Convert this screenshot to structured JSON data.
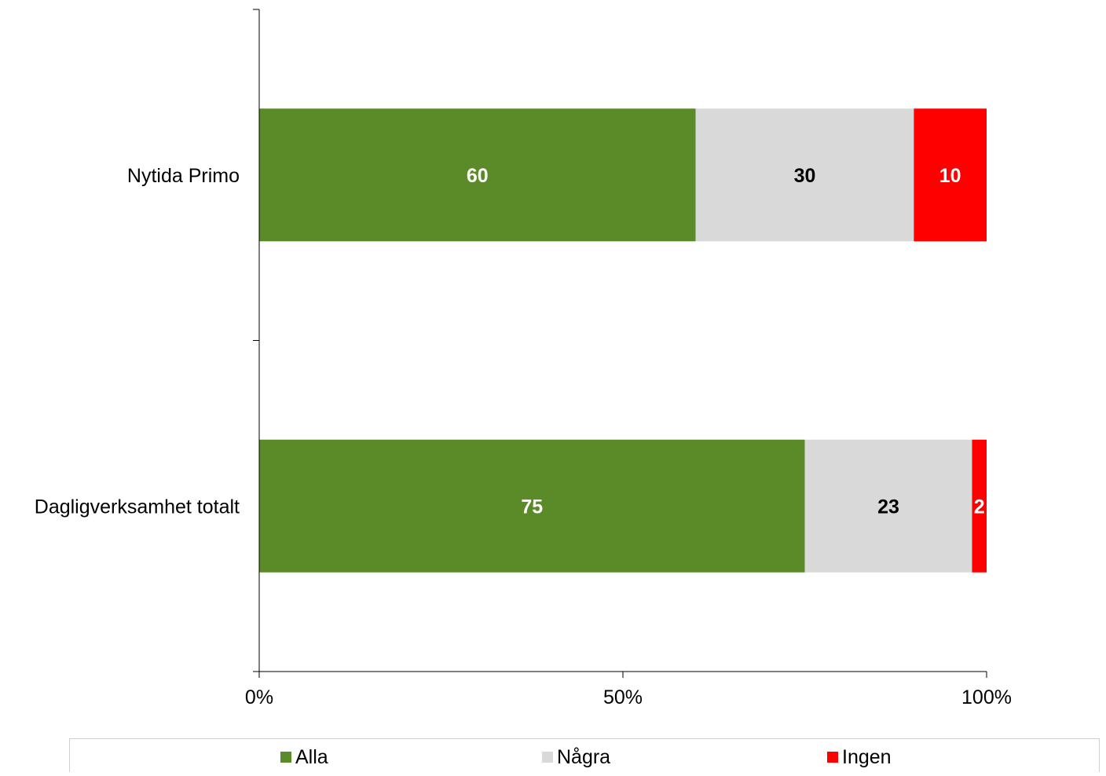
{
  "chart_data": {
    "type": "bar",
    "orientation": "horizontal",
    "stacked": "percent",
    "categories": [
      "Nytida Primo",
      "Dagligverksamhet totalt"
    ],
    "series": [
      {
        "name": "Alla",
        "values": [
          60,
          75
        ],
        "color": "#5b8a28",
        "label_color": "#ffffff"
      },
      {
        "name": "Några",
        "values": [
          30,
          23
        ],
        "color": "#d9d9d9",
        "label_color": "#000000"
      },
      {
        "name": "Ingen",
        "values": [
          10,
          2
        ],
        "color": "#ff0000",
        "label_color": "#ffffff"
      }
    ],
    "x_ticks": [
      "0%",
      "50%",
      "100%"
    ],
    "xlim": [
      0,
      100
    ],
    "grid": false,
    "legend_position": "bottom"
  }
}
